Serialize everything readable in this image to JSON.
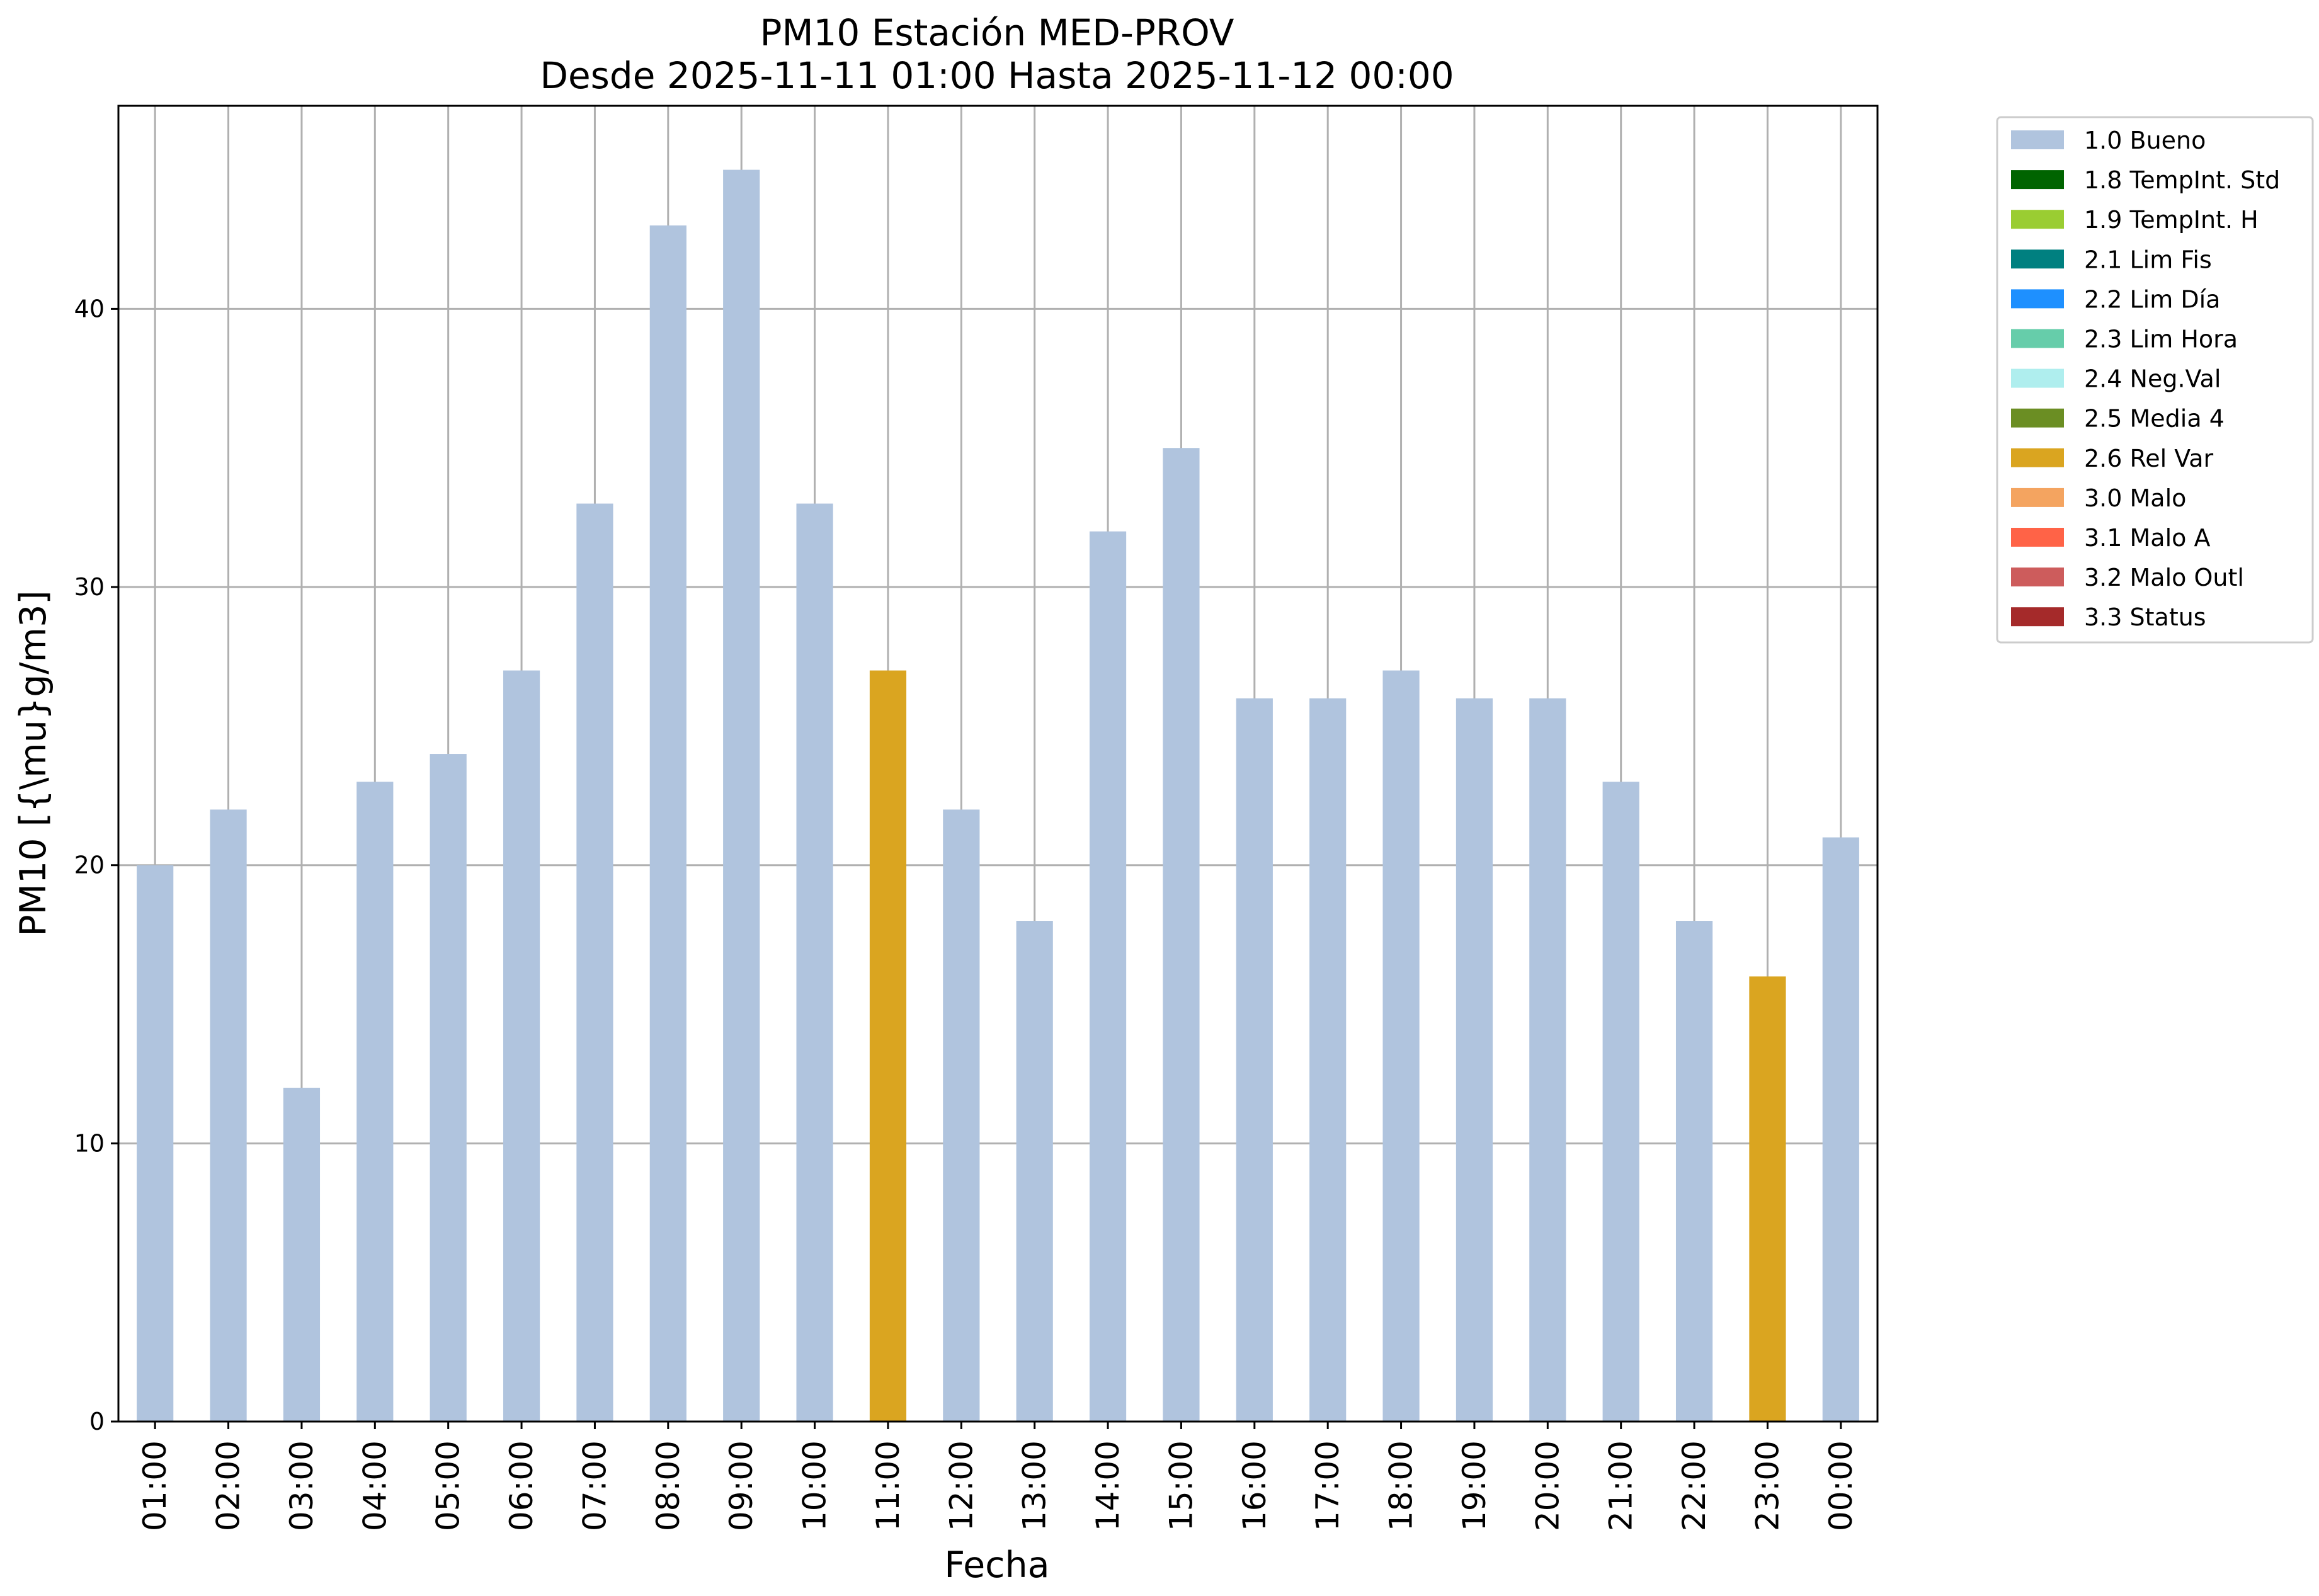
{
  "chart_data": {
    "type": "bar",
    "title": "PM10 Estación MED-PROV",
    "subtitle": "Desde 2025-11-11 01:00 Hasta 2025-11-12 00:00",
    "xlabel": "Fecha",
    "ylabel": "PM10 [{\\mu}g/m3]",
    "ylim": [
      0,
      47.3
    ],
    "yticks": [
      0,
      10,
      20,
      30,
      40
    ],
    "grid": true,
    "legend_position": "outside-right",
    "categories": [
      "01:00",
      "02:00",
      "03:00",
      "04:00",
      "05:00",
      "06:00",
      "07:00",
      "08:00",
      "09:00",
      "10:00",
      "11:00",
      "12:00",
      "13:00",
      "14:00",
      "15:00",
      "16:00",
      "17:00",
      "18:00",
      "19:00",
      "20:00",
      "21:00",
      "22:00",
      "23:00",
      "00:00"
    ],
    "values": [
      20,
      22,
      12,
      23,
      24,
      27,
      33,
      43,
      45,
      33,
      27,
      22,
      18,
      32,
      35,
      26,
      26,
      27,
      26,
      26,
      23,
      18,
      16,
      21
    ],
    "flags": [
      "1.0 Bueno",
      "1.0 Bueno",
      "1.0 Bueno",
      "1.0 Bueno",
      "1.0 Bueno",
      "1.0 Bueno",
      "1.0 Bueno",
      "1.0 Bueno",
      "1.0 Bueno",
      "1.0 Bueno",
      "2.6 Rel Var",
      "1.0 Bueno",
      "1.0 Bueno",
      "1.0 Bueno",
      "1.0 Bueno",
      "1.0 Bueno",
      "1.0 Bueno",
      "1.0 Bueno",
      "1.0 Bueno",
      "1.0 Bueno",
      "1.0 Bueno",
      "1.0 Bueno",
      "2.6 Rel Var",
      "1.0 Bueno"
    ],
    "legend": [
      {
        "label": "1.0 Bueno",
        "color": "#b0c4de"
      },
      {
        "label": "1.8 TempInt. Std",
        "color": "#006400"
      },
      {
        "label": "1.9 TempInt. H",
        "color": "#9acd32"
      },
      {
        "label": "2.1 Lim Fis",
        "color": "#008080"
      },
      {
        "label": "2.2 Lim Día",
        "color": "#1e90ff"
      },
      {
        "label": "2.3 Lim Hora",
        "color": "#66cdaa"
      },
      {
        "label": "2.4 Neg.Val",
        "color": "#afeeee"
      },
      {
        "label": "2.5 Media 4",
        "color": "#6b8e23"
      },
      {
        "label": "2.6 Rel Var",
        "color": "#daa520"
      },
      {
        "label": "3.0 Malo",
        "color": "#f4a460"
      },
      {
        "label": "3.1 Malo A",
        "color": "#ff6347"
      },
      {
        "label": "3.2 Malo Outl",
        "color": "#cd5c5c"
      },
      {
        "label": "3.3 Status",
        "color": "#a52a2a"
      }
    ]
  }
}
